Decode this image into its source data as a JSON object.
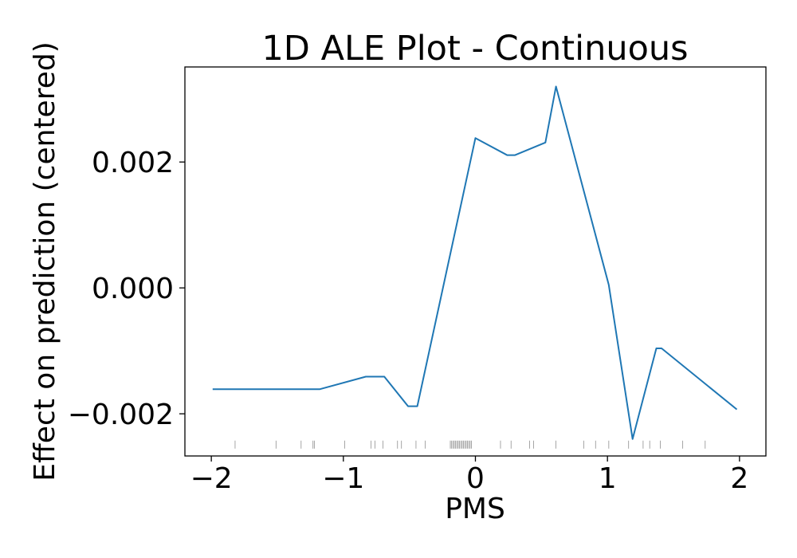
{
  "chart_data": {
    "type": "line",
    "title": "1D ALE Plot - Continuous",
    "xlabel": "PMS",
    "ylabel": "Effect on prediction (centered)",
    "xlim": [
      -2.2,
      2.2
    ],
    "ylim": [
      -0.00267,
      0.00351
    ],
    "xticks": [
      -2,
      -1,
      0,
      1,
      2
    ],
    "xtick_labels": [
      "−2",
      "−1",
      "0",
      "1",
      "2"
    ],
    "yticks": [
      -0.002,
      0.0,
      0.002
    ],
    "ytick_labels": [
      "−0.002",
      "0.000",
      "0.002"
    ],
    "grid": false,
    "line_color": "#1f77b4",
    "rug_color": "#444444",
    "series": [
      {
        "x": [
          -1.99,
          -1.18,
          -0.83,
          -0.69,
          -0.51,
          -0.44,
          0.0,
          0.24,
          0.3,
          0.53,
          0.61,
          1.01,
          1.19,
          1.37,
          1.41,
          1.98
        ],
        "y": [
          -0.00161,
          -0.00161,
          -0.00141,
          -0.00141,
          -0.00188,
          -0.00188,
          0.00238,
          0.00211,
          0.00211,
          0.00231,
          0.0032,
          5e-05,
          -0.0024,
          -0.00096,
          -0.00096,
          -0.00193
        ]
      }
    ],
    "rug_x": [
      -1.82,
      -1.51,
      -1.32,
      -1.23,
      -1.22,
      -0.99,
      -0.79,
      -0.76,
      -0.7,
      -0.59,
      -0.56,
      -0.45,
      -0.38,
      -0.19,
      -0.18,
      -0.17,
      -0.16,
      -0.15,
      -0.14,
      -0.13,
      -0.12,
      -0.11,
      -0.1,
      -0.09,
      -0.08,
      -0.07,
      -0.06,
      -0.05,
      -0.04,
      -0.03,
      0.19,
      0.27,
      0.41,
      0.44,
      0.61,
      0.82,
      0.91,
      1.01,
      1.16,
      1.27,
      1.32,
      1.4,
      1.57,
      1.74
    ],
    "rug_y": -0.00249
  }
}
